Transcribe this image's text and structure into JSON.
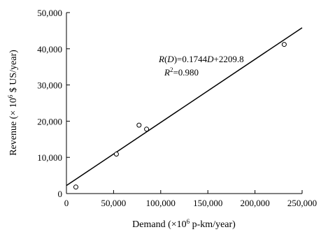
{
  "chart_data": {
    "type": "scatter",
    "title": "",
    "xlabel_parts": {
      "pre": "Demand (×10",
      "sup": "6",
      "post": " p-km/year)"
    },
    "ylabel_parts": {
      "pre": "Revenue (× 10",
      "sup": "6",
      "post": " $ US/year)"
    },
    "xlim": [
      0,
      250000
    ],
    "ylim": [
      0,
      50000
    ],
    "x_ticks": [
      0,
      50000,
      100000,
      150000,
      200000,
      250000
    ],
    "y_ticks": [
      0,
      10000,
      20000,
      30000,
      40000,
      50000
    ],
    "x_tick_labels": [
      "0",
      "50,000",
      "100,000",
      "150,000",
      "200,000",
      "250,000"
    ],
    "y_tick_labels": [
      "0",
      "10,000",
      "20,000",
      "30,000",
      "40,000",
      "50,000"
    ],
    "grid": false,
    "series": [
      {
        "marker": "open-circle",
        "x": [
          10000,
          53000,
          77000,
          85000,
          231000
        ],
        "y": [
          1800,
          10900,
          18900,
          17800,
          41200
        ]
      }
    ],
    "fit_line": {
      "slope": 0.1744,
      "intercept": 2209.8,
      "x_range": [
        0,
        250000
      ]
    },
    "annotation": {
      "eq_italic_R": "R",
      "eq_mid": "(",
      "eq_italic_D": "D",
      "eq_rest": ")=0.1744",
      "eq_italic_D2": "D",
      "eq_tail": "+2209.8",
      "r2_italic": "R",
      "r2_sup": "2",
      "r2_tail": "=0.980"
    }
  }
}
